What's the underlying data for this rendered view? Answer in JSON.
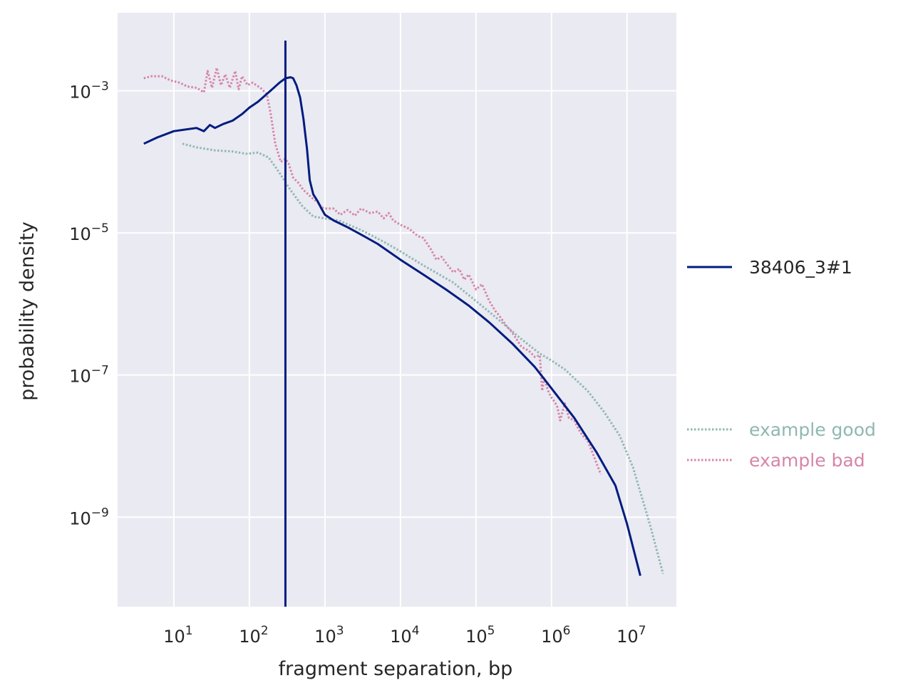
{
  "chart_data": {
    "type": "line",
    "xlabel": "fragment separation, bp",
    "ylabel": "probability density",
    "xscale": "log",
    "yscale": "log",
    "xlim": [
      1.8,
      45000000
    ],
    "ylim": [
      5.5e-11,
      0.0125
    ],
    "grid": true,
    "legend_placement": "right, outside plot",
    "background_color": "#eaeaf2",
    "grid_color": "#ffffff",
    "xticks": [
      {
        "value": 10,
        "base": "10",
        "exp": "1"
      },
      {
        "value": 100,
        "base": "10",
        "exp": "2"
      },
      {
        "value": 1000,
        "base": "10",
        "exp": "3"
      },
      {
        "value": 10000,
        "base": "10",
        "exp": "4"
      },
      {
        "value": 100000,
        "base": "10",
        "exp": "5"
      },
      {
        "value": 1000000,
        "base": "10",
        "exp": "6"
      },
      {
        "value": 10000000,
        "base": "10",
        "exp": "7"
      }
    ],
    "yticks": [
      {
        "value": 0.001,
        "base": "10",
        "exp": "−3"
      },
      {
        "value": 1e-05,
        "base": "10",
        "exp": "−5"
      },
      {
        "value": 1e-07,
        "base": "10",
        "exp": "−7"
      },
      {
        "value": 1e-09,
        "base": "10",
        "exp": "−9"
      }
    ],
    "vline": {
      "x": 300,
      "color": "#001c7f"
    },
    "series": [
      {
        "name": "38406_3#1",
        "style": "solid",
        "color": "#001c7f",
        "width": 3,
        "points": [
          [
            4,
            0.00018
          ],
          [
            6,
            0.00022
          ],
          [
            10,
            0.00027
          ],
          [
            20,
            0.0003
          ],
          [
            25,
            0.00027
          ],
          [
            30,
            0.00033
          ],
          [
            35,
            0.0003
          ],
          [
            45,
            0.00034
          ],
          [
            60,
            0.00038
          ],
          [
            80,
            0.00047
          ],
          [
            100,
            0.00058
          ],
          [
            130,
            0.0007
          ],
          [
            160,
            0.00085
          ],
          [
            200,
            0.00105
          ],
          [
            250,
            0.0013
          ],
          [
            300,
            0.0015
          ],
          [
            350,
            0.00155
          ],
          [
            380,
            0.0015
          ],
          [
            420,
            0.0012
          ],
          [
            470,
            0.0008
          ],
          [
            520,
            0.0004
          ],
          [
            580,
            0.00015
          ],
          [
            630,
            5.5e-05
          ],
          [
            700,
            3.5e-05
          ],
          [
            800,
            2.8e-05
          ],
          [
            900,
            2.2e-05
          ],
          [
            1000,
            1.8e-05
          ],
          [
            1300,
            1.5e-05
          ],
          [
            2000,
            1.2e-05
          ],
          [
            3000,
            9.5e-06
          ],
          [
            5000,
            7e-06
          ],
          [
            10000,
            4.2e-06
          ],
          [
            20000,
            2.6e-06
          ],
          [
            40000,
            1.6e-06
          ],
          [
            80000,
            9.5e-07
          ],
          [
            150000,
            5.5e-07
          ],
          [
            300000,
            2.8e-07
          ],
          [
            600000,
            1.3e-07
          ],
          [
            1000000,
            6.5e-08
          ],
          [
            2000000,
            2.5e-08
          ],
          [
            4000000,
            8e-09
          ],
          [
            7000000,
            2.8e-09
          ],
          [
            10000000,
            8e-10
          ],
          [
            15000000,
            1.5e-10
          ]
        ]
      },
      {
        "name": "example good",
        "style": "dotted",
        "color": "#8fb8b0",
        "width": 3,
        "points": [
          [
            13,
            0.00018
          ],
          [
            20,
            0.00016
          ],
          [
            35,
            0.000145
          ],
          [
            60,
            0.00014
          ],
          [
            90,
            0.00013
          ],
          [
            130,
            0.000135
          ],
          [
            180,
            0.000115
          ],
          [
            250,
            7e-05
          ],
          [
            350,
            4e-05
          ],
          [
            500,
            2.4e-05
          ],
          [
            700,
            1.7e-05
          ],
          [
            1000,
            1.6e-05
          ],
          [
            1500,
            1.5e-05
          ],
          [
            3000,
            1.1e-05
          ],
          [
            6000,
            7.5e-06
          ],
          [
            10000,
            5.5e-06
          ],
          [
            20000,
            3.5e-06
          ],
          [
            50000,
            2e-06
          ],
          [
            100000,
            1.1e-06
          ],
          [
            200000,
            6e-07
          ],
          [
            400000,
            3.2e-07
          ],
          [
            700000,
            2e-07
          ],
          [
            1000000,
            1.6e-07
          ],
          [
            1500000,
            1.2e-07
          ],
          [
            2000000,
            9e-08
          ],
          [
            3000000,
            6e-08
          ],
          [
            5000000,
            3e-08
          ],
          [
            8000000,
            1.4e-08
          ],
          [
            12000000,
            5e-09
          ],
          [
            20000000,
            8e-10
          ],
          [
            30000000,
            1.6e-10
          ]
        ]
      },
      {
        "name": "example bad",
        "style": "dotted",
        "color": "#d685a9",
        "width": 3,
        "points": [
          [
            4,
            0.0015
          ],
          [
            5,
            0.0016
          ],
          [
            7,
            0.0016
          ],
          [
            9,
            0.0014
          ],
          [
            12,
            0.0013
          ],
          [
            15,
            0.00115
          ],
          [
            20,
            0.0011
          ],
          [
            25,
            0.00095
          ],
          [
            28,
            0.0019
          ],
          [
            32,
            0.0011
          ],
          [
            37,
            0.0021
          ],
          [
            42,
            0.0012
          ],
          [
            48,
            0.0017
          ],
          [
            55,
            0.0011
          ],
          [
            65,
            0.0019
          ],
          [
            72,
            0.00105
          ],
          [
            80,
            0.0016
          ],
          [
            95,
            0.0012
          ],
          [
            110,
            0.0013
          ],
          [
            140,
            0.0011
          ],
          [
            170,
            0.0009
          ],
          [
            190,
            0.0005
          ],
          [
            220,
            0.00018
          ],
          [
            260,
            0.0001
          ],
          [
            300,
            0.00011
          ],
          [
            330,
            9.5e-05
          ],
          [
            380,
            6e-05
          ],
          [
            450,
            5e-05
          ],
          [
            520,
            4e-05
          ],
          [
            600,
            3.5e-05
          ],
          [
            700,
            3e-05
          ],
          [
            800,
            2.7e-05
          ],
          [
            900,
            2.3e-05
          ],
          [
            1000,
            2.2e-05
          ],
          [
            1300,
            2.2e-05
          ],
          [
            1600,
            1.8e-05
          ],
          [
            2000,
            2.1e-05
          ],
          [
            2500,
            1.75e-05
          ],
          [
            3000,
            2.2e-05
          ],
          [
            4000,
            1.9e-05
          ],
          [
            5000,
            2e-05
          ],
          [
            6000,
            1.6e-05
          ],
          [
            7000,
            1.9e-05
          ],
          [
            8000,
            1.5e-05
          ],
          [
            10000,
            1.3e-05
          ],
          [
            13000,
            1.15e-05
          ],
          [
            17000,
            9e-06
          ],
          [
            20000,
            8.5e-06
          ],
          [
            25000,
            6e-06
          ],
          [
            30000,
            4.2e-06
          ],
          [
            35000,
            4.6e-06
          ],
          [
            40000,
            3.8e-06
          ],
          [
            50000,
            2.8e-06
          ],
          [
            60000,
            3.1e-06
          ],
          [
            70000,
            2.2e-06
          ],
          [
            80000,
            2.6e-06
          ],
          [
            100000,
            1.6e-06
          ],
          [
            120000,
            1.9e-06
          ],
          [
            150000,
            1.1e-06
          ],
          [
            180000,
            8e-07
          ],
          [
            200000,
            7e-07
          ],
          [
            250000,
            5e-07
          ],
          [
            300000,
            4e-07
          ],
          [
            400000,
            2.5e-07
          ],
          [
            500000,
            2.2e-07
          ],
          [
            600000,
            1.8e-07
          ],
          [
            700000,
            1.9e-07
          ],
          [
            750000,
            6e-08
          ],
          [
            800000,
            9e-08
          ],
          [
            900000,
            6e-08
          ],
          [
            1000000,
            4.8e-08
          ],
          [
            1100000,
            4.2e-08
          ],
          [
            1200000,
            3.5e-08
          ],
          [
            1300000,
            2.3e-08
          ],
          [
            1500000,
            4e-08
          ],
          [
            1700000,
            2.5e-08
          ],
          [
            2000000,
            2.3e-08
          ],
          [
            2300000,
            1.7e-08
          ],
          [
            2600000,
            1.4e-08
          ],
          [
            3000000,
            1.2e-08
          ],
          [
            3500000,
            8e-09
          ],
          [
            4000000,
            5.5e-09
          ],
          [
            4500000,
            4e-09
          ]
        ]
      }
    ],
    "legend": [
      {
        "label": "38406_3#1",
        "style": "solid",
        "color": "#001c7f"
      },
      {
        "label": "example good",
        "style": "dotted",
        "color": "#8fb8b0"
      },
      {
        "label": "example bad",
        "style": "dotted",
        "color": "#d685a9"
      }
    ]
  }
}
